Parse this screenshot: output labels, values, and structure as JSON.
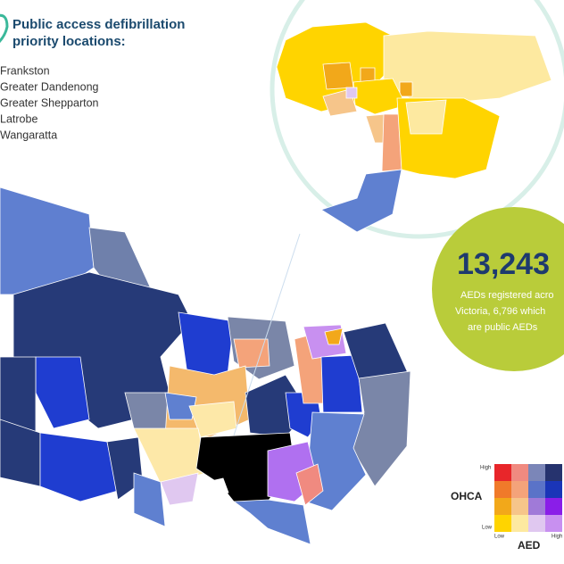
{
  "title": [
    "Public access defibrillation",
    "priority locations:"
  ],
  "locations": [
    "Frankston",
    "Greater Dandenong",
    "Greater Shepparton",
    "Latrobe",
    "Wangaratta"
  ],
  "stat": {
    "value": "13,243",
    "caption": [
      "AEDs registered acro",
      "Victoria, 6,796 which",
      "are public AEDs"
    ]
  },
  "legend": {
    "y_high": "High",
    "y_low": "Low",
    "y_title": "OHCA",
    "x_low": "Low",
    "x_high": "High",
    "x_title": "AED"
  }
}
